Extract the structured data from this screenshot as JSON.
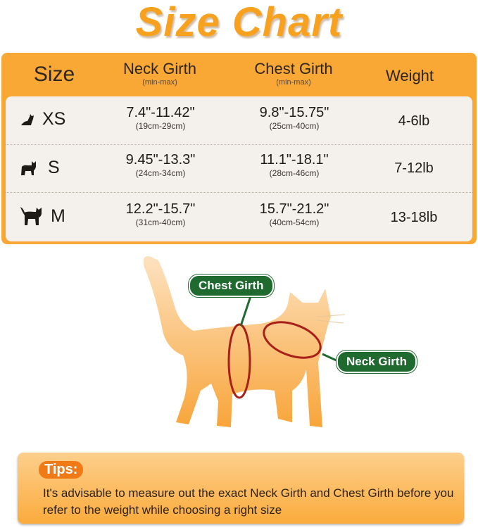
{
  "title": "Size Chart",
  "table": {
    "headers": [
      {
        "label": "Size",
        "sub": ""
      },
      {
        "label": "Neck Girth",
        "sub": "(min-max)"
      },
      {
        "label": "Chest Girth",
        "sub": "(min-max)"
      },
      {
        "label": "Weight",
        "sub": ""
      }
    ],
    "rows": [
      {
        "size": "XS",
        "icon": "small-cat-icon",
        "neck": "7.4\"-11.42\"",
        "neck_cm": "(19cm-29cm)",
        "chest": "9.8\"-15.75\"",
        "chest_cm": "(25cm-40cm)",
        "weight": "4-6lb"
      },
      {
        "size": "S",
        "icon": "medium-cat-icon",
        "neck": "9.45\"-13.3\"",
        "neck_cm": "(24cm-34cm)",
        "chest": "11.1\"-18.1\"",
        "chest_cm": "(28cm-46cm)",
        "weight": "7-12lb"
      },
      {
        "size": "M",
        "icon": "large-cat-icon",
        "neck": "12.2\"-15.7\"",
        "neck_cm": "(31cm-40cm)",
        "chest": "15.7\"-21.2\"",
        "chest_cm": "(40cm-54cm)",
        "weight": "13-18lb"
      }
    ]
  },
  "diagram": {
    "chest_label": "Chest Girth",
    "neck_label": "Neck Girth"
  },
  "tips": {
    "label": "Tips:",
    "text": "It's advisable to measure out the exact Neck Girth and Chest Girth before you refer to the weight while choosing a right size"
  },
  "colors": {
    "accent": "#f9a835",
    "label_green": "#1f6a2e",
    "measure_red": "#a8201a"
  }
}
